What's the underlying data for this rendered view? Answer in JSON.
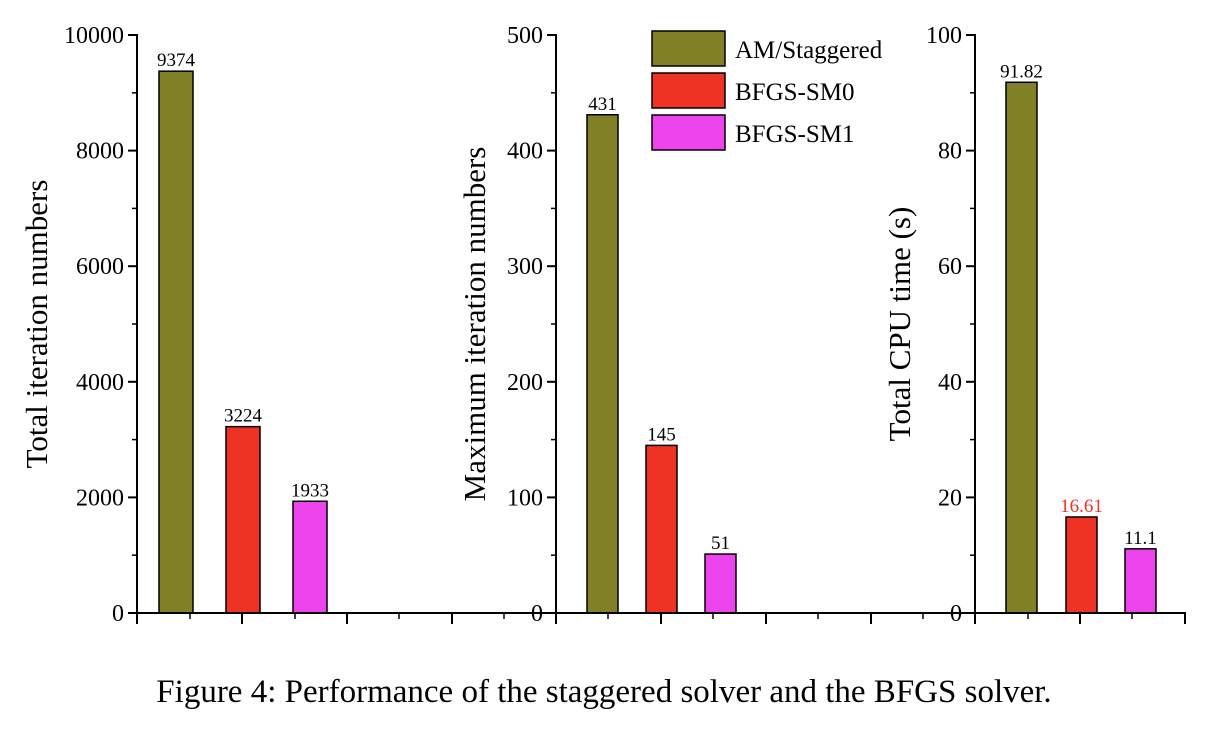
{
  "figure": {
    "caption": "Figure 4: Performance of the staggered solver and the BFGS solver."
  },
  "legend": [
    {
      "label": "AM/Staggered",
      "color": "#808027"
    },
    {
      "label": "BFGS-SM0",
      "color": "#EE3224"
    },
    {
      "label": "BFGS-SM1",
      "color": "#EE44EE"
    }
  ],
  "chart_data": [
    {
      "type": "bar",
      "ylabel": "Total iteration numbers",
      "ylim": [
        0,
        10000
      ],
      "yticks": [
        "0",
        "2000",
        "4000",
        "6000",
        "8000",
        "10000"
      ],
      "series": [
        {
          "name": "AM/Staggered",
          "value": 9374,
          "label": "9374",
          "label_color": "#000000"
        },
        {
          "name": "BFGS-SM0",
          "value": 3224,
          "label": "3224",
          "label_color": "#000000"
        },
        {
          "name": "BFGS-SM1",
          "value": 1933,
          "label": "1933",
          "label_color": "#000000"
        }
      ]
    },
    {
      "type": "bar",
      "ylabel": "Maximum iteration numbers",
      "ylim": [
        0,
        500
      ],
      "yticks": [
        "0",
        "100",
        "200",
        "300",
        "400",
        "500"
      ],
      "series": [
        {
          "name": "AM/Staggered",
          "value": 431,
          "label": "431",
          "label_color": "#000000"
        },
        {
          "name": "BFGS-SM0",
          "value": 145,
          "label": "145",
          "label_color": "#000000"
        },
        {
          "name": "BFGS-SM1",
          "value": 51,
          "label": "51",
          "label_color": "#000000"
        }
      ]
    },
    {
      "type": "bar",
      "ylabel": "Total CPU time (s)",
      "ylim": [
        0,
        100
      ],
      "yticks": [
        "0",
        "20",
        "40",
        "60",
        "80",
        "100"
      ],
      "series": [
        {
          "name": "AM/Staggered",
          "value": 91.82,
          "label": "91.82",
          "label_color": "#000000"
        },
        {
          "name": "BFGS-SM0",
          "value": 16.61,
          "label": "16.61",
          "label_color": "#EE3224"
        },
        {
          "name": "BFGS-SM1",
          "value": 11.1,
          "label": "11.1",
          "label_color": "#000000"
        }
      ]
    }
  ]
}
